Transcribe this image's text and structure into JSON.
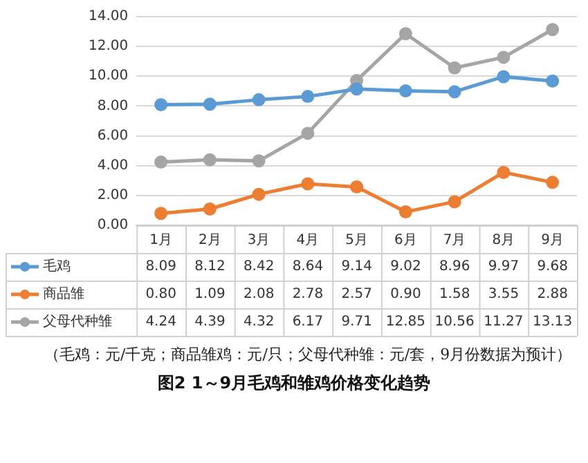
{
  "chart_data": {
    "type": "line",
    "title": "图2 1～9月毛鸡和雏鸡价格变化趋势",
    "annotations": [
      "（毛鸡：元/千克；商品雏鸡：元/只；父母代种雏：元/套，9月份数据为预计）"
    ],
    "categories": [
      "1月",
      "2月",
      "3月",
      "4月",
      "5月",
      "6月",
      "7月",
      "8月",
      "9月"
    ],
    "series": [
      {
        "name": "毛鸡",
        "color": "#5b9bd5",
        "values": [
          8.09,
          8.12,
          8.42,
          8.64,
          9.14,
          9.02,
          8.96,
          9.97,
          9.68
        ],
        "value_labels": [
          "8.09",
          "8.12",
          "8.42",
          "8.64",
          "9.14",
          "9.02",
          "8.96",
          "9.97",
          "9.68"
        ]
      },
      {
        "name": "商品雏",
        "color": "#ed7d31",
        "values": [
          0.8,
          1.09,
          2.08,
          2.78,
          2.57,
          0.9,
          1.58,
          3.55,
          2.88
        ],
        "value_labels": [
          "0.80",
          "1.09",
          "2.08",
          "2.78",
          "2.57",
          "0.90",
          "1.58",
          "3.55",
          "2.88"
        ]
      },
      {
        "name": "父母代种雏",
        "color": "#a5a5a5",
        "values": [
          4.24,
          4.39,
          4.32,
          6.17,
          9.71,
          12.85,
          10.56,
          11.27,
          13.13
        ],
        "value_labels": [
          "4.24",
          "4.39",
          "4.32",
          "6.17",
          "9.71",
          "12.85",
          "10.56",
          "11.27",
          "13.13"
        ]
      }
    ],
    "ylim": [
      0,
      14
    ],
    "yticks": [
      {
        "value": 0,
        "label": "0.00"
      },
      {
        "value": 2,
        "label": "2.00"
      },
      {
        "value": 4,
        "label": "4.00"
      },
      {
        "value": 6,
        "label": "6.00"
      },
      {
        "value": 8,
        "label": "8.00"
      },
      {
        "value": 10,
        "label": "10.00"
      },
      {
        "value": 12,
        "label": "12.00"
      },
      {
        "value": 14,
        "label": "14.00"
      }
    ],
    "grid": "y",
    "marker": "circle",
    "line_style": "solid",
    "legend": "bottom"
  }
}
